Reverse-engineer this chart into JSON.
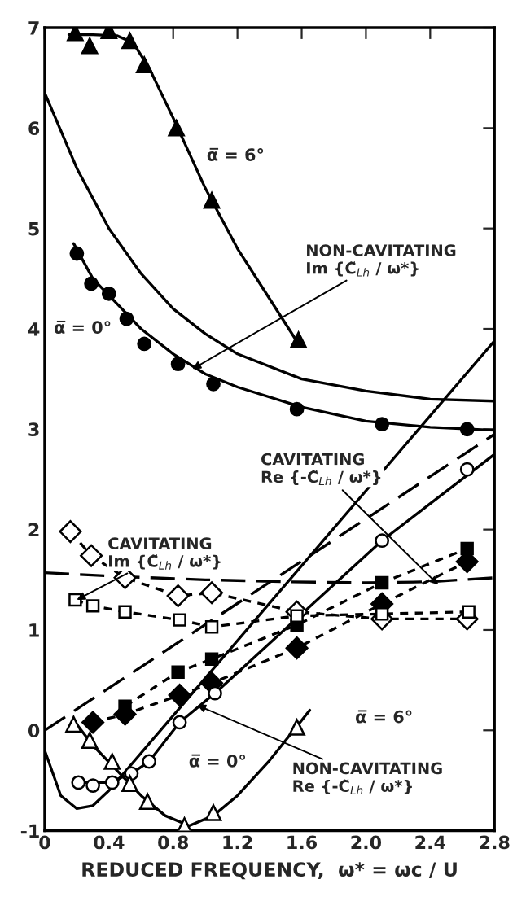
{
  "chart_data": {
    "type": "line",
    "xlabel": "REDUCED FREQUENCY,  ω* = ωc / U",
    "xlim": [
      0,
      2.8
    ],
    "xticks": [
      0,
      0.4,
      0.8,
      1.2,
      1.6,
      {
        "value": 2.0,
        "label": "2.0"
      },
      2.4,
      2.8
    ],
    "ylim": [
      -1,
      7
    ],
    "yticks": [
      -1,
      0,
      1,
      2,
      3,
      4,
      5,
      6,
      7
    ],
    "grid": false,
    "legend": false,
    "series": [
      {
        "type": "line",
        "color": "#000000",
        "line_style": "solid",
        "marker": "none",
        "x": [
          0.15,
          0.3,
          0.45,
          0.55,
          0.65,
          0.8,
          1.0,
          1.2,
          1.4,
          1.58
        ],
        "values": [
          6.93,
          6.93,
          6.92,
          6.85,
          6.6,
          6.1,
          5.4,
          4.8,
          4.3,
          3.85
        ]
      },
      {
        "type": "scatter",
        "color": "#000000",
        "marker": "triangle",
        "x": [
          0.19,
          0.28,
          0.4,
          0.53,
          0.62,
          0.82,
          1.04,
          1.58
        ],
        "values": [
          6.95,
          6.82,
          6.97,
          6.87,
          6.63,
          6.0,
          5.28,
          3.89
        ]
      },
      {
        "type": "line",
        "color": "#000000",
        "line_style": "solid",
        "marker": "none",
        "x": [
          0.18,
          0.3,
          0.45,
          0.6,
          0.8,
          1.0,
          1.2,
          1.6,
          2.0,
          2.4,
          2.8
        ],
        "values": [
          4.85,
          4.5,
          4.25,
          4.0,
          3.75,
          3.55,
          3.42,
          3.22,
          3.08,
          3.02,
          2.99
        ]
      },
      {
        "type": "scatter",
        "color": "#000000",
        "marker": "circle",
        "x": [
          0.2,
          0.29,
          0.4,
          0.51,
          0.62,
          0.83,
          1.05,
          1.57,
          2.1,
          2.63
        ],
        "values": [
          4.75,
          4.45,
          4.35,
          4.1,
          3.85,
          3.65,
          3.45,
          3.2,
          3.05,
          3.0
        ]
      },
      {
        "type": "line",
        "color": "#000000",
        "line_style": "solid",
        "marker": "none",
        "x": [
          0,
          0.2,
          0.4,
          0.6,
          0.8,
          1.0,
          1.2,
          1.6,
          2.0,
          2.4,
          2.8
        ],
        "values": [
          6.35,
          5.6,
          5.0,
          4.55,
          4.2,
          3.95,
          3.75,
          3.5,
          3.38,
          3.3,
          3.28
        ]
      },
      {
        "type": "line",
        "color": "#000000",
        "line_style": "dashed",
        "marker": "none",
        "x": [
          0,
          0.5,
          1.0,
          1.5,
          2.0,
          2.4,
          2.8
        ],
        "values": [
          1.57,
          1.53,
          1.5,
          1.48,
          1.47,
          1.48,
          1.52
        ]
      },
      {
        "type": "line",
        "color": "#000000",
        "line_style": "dashed",
        "marker": "none",
        "x": [
          0,
          2.8
        ],
        "values": [
          0,
          2.95
        ]
      },
      {
        "type": "line",
        "color": "#000000",
        "line_style": "solid",
        "marker": "none",
        "x": [
          0,
          0.1,
          0.2,
          0.3,
          0.4,
          2.8
        ],
        "values": [
          -0.2,
          -0.65,
          -0.78,
          -0.75,
          -0.6,
          3.88
        ]
      },
      {
        "type": "line",
        "color": "#000000",
        "line_style": "dotted",
        "marker": "none",
        "x": [
          0.16,
          0.29,
          0.5,
          0.83,
          1.04,
          1.57,
          2.1,
          2.63
        ],
        "values": [
          1.98,
          1.74,
          1.52,
          1.34,
          1.37,
          1.18,
          1.11,
          1.11
        ]
      },
      {
        "type": "scatter",
        "color": "#ffffff",
        "marker": "diamond",
        "x": [
          0.16,
          0.29,
          0.5,
          0.83,
          1.04,
          1.57,
          2.1,
          2.63
        ],
        "values": [
          1.98,
          1.74,
          1.52,
          1.34,
          1.37,
          1.18,
          1.11,
          1.11
        ]
      },
      {
        "type": "line",
        "color": "#000000",
        "line_style": "dotted",
        "marker": "none",
        "x": [
          0.19,
          0.3,
          0.5,
          0.84,
          1.04,
          1.57,
          2.1,
          2.64
        ],
        "values": [
          1.3,
          1.24,
          1.18,
          1.1,
          1.03,
          1.14,
          1.16,
          1.18
        ]
      },
      {
        "type": "scatter",
        "color": "#ffffff",
        "marker": "square",
        "x": [
          0.19,
          0.3,
          0.5,
          0.84,
          1.04,
          1.57,
          2.1,
          2.64
        ],
        "values": [
          1.3,
          1.24,
          1.18,
          1.1,
          1.03,
          1.14,
          1.16,
          1.18
        ]
      },
      {
        "type": "line",
        "color": "#000000",
        "line_style": "dotted",
        "marker": "square",
        "x": [
          0.5,
          0.83,
          1.04,
          1.57,
          2.1,
          2.63
        ],
        "values": [
          0.24,
          0.58,
          0.71,
          1.05,
          1.47,
          1.81
        ]
      },
      {
        "type": "line",
        "color": "#000000",
        "line_style": "dotted",
        "marker": "diamond",
        "x": [
          0.3,
          0.5,
          0.84,
          1.04,
          1.57,
          2.1,
          2.63
        ],
        "values": [
          0.08,
          0.16,
          0.35,
          0.47,
          0.82,
          1.26,
          1.68
        ]
      },
      {
        "type": "line",
        "color": "#000000",
        "line_style": "solid",
        "marker": "none",
        "x": [
          0.21,
          0.4,
          0.54,
          0.65,
          0.84,
          1.06,
          2.1,
          2.8
        ],
        "values": [
          -0.52,
          -0.52,
          -0.43,
          -0.31,
          0.08,
          0.37,
          1.89,
          2.75
        ]
      },
      {
        "type": "scatter",
        "color": "#ffffff",
        "marker": "circle",
        "x": [
          0.21,
          0.3,
          0.42,
          0.54,
          0.65,
          0.84,
          1.06,
          2.1,
          2.63
        ],
        "values": [
          -0.52,
          -0.55,
          -0.52,
          -0.43,
          -0.31,
          0.08,
          0.37,
          1.89,
          2.6
        ]
      },
      {
        "type": "line",
        "color": "#000000",
        "line_style": "solid",
        "marker": "none",
        "x": [
          0.18,
          0.3,
          0.45,
          0.6,
          0.75,
          0.9,
          1.05,
          1.2,
          1.4,
          1.6,
          1.65
        ],
        "values": [
          0.1,
          -0.15,
          -0.4,
          -0.65,
          -0.85,
          -0.95,
          -0.85,
          -0.65,
          -0.3,
          0.1,
          0.2
        ]
      },
      {
        "type": "scatter",
        "color": "#ffffff",
        "marker": "triangle",
        "x": [
          0.18,
          0.28,
          0.42,
          0.53,
          0.64,
          0.87,
          1.05,
          1.57
        ],
        "values": [
          0.06,
          -0.1,
          -0.31,
          -0.53,
          -0.71,
          -0.95,
          -0.82,
          0.03
        ]
      }
    ],
    "annotations": [
      "α̅ = 6°",
      "α̅ = 0°",
      {
        "text": "NON-CAVITATING\nIm {C̃$_{Lh}$ / ω*}",
        "x": 0.92,
        "y": 3.6
      },
      {
        "text": "CAVITATING\nRe {-C̃$_{Lh}$ / ω*}",
        "x": 2.45,
        "y": 1.45
      },
      {
        "text": "CAVITATING\nIm {C̃$_{Lh}$ / ω*}",
        "x": 0.2,
        "y": 1.3
      },
      "α̅ = 6°",
      "α̅ = 0°",
      {
        "text": "NON-CAVITATING\nRe {-C̃$_{Lh}$ / ω*}",
        "x": 0.95,
        "y": 0.25
      }
    ]
  }
}
